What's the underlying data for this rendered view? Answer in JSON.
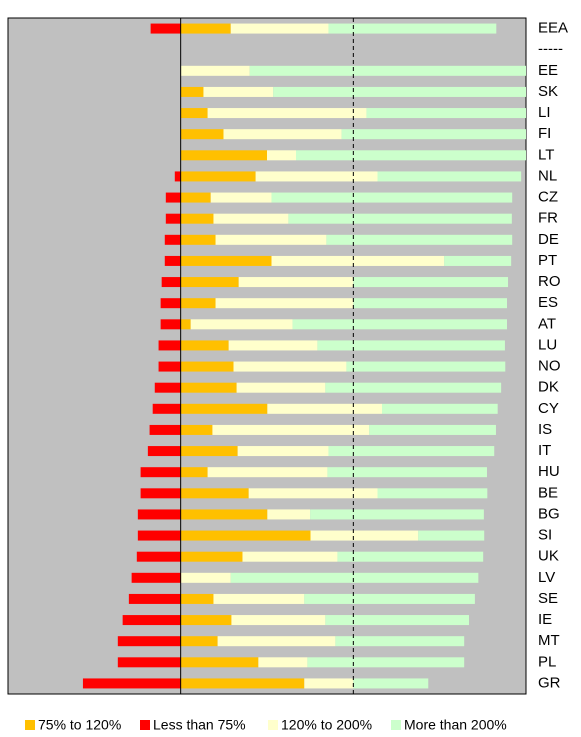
{
  "chart_data": {
    "type": "stacked-bar-horizontal",
    "categories": [
      "EEA",
      "-----",
      "EE",
      "SK",
      "LI",
      "FI",
      "LT",
      "NL",
      "CZ",
      "FR",
      "DE",
      "PT",
      "RO",
      "ES",
      "AT",
      "LU",
      "NO",
      "DK",
      "CY",
      "IS",
      "IT",
      "HU",
      "BE",
      "BG",
      "SI",
      "UK",
      "LV",
      "SE",
      "IE",
      "MT",
      "PL",
      "GR"
    ],
    "series": [
      {
        "name": "75% to 120%",
        "color": "#FFC000",
        "values": [
          14.5,
          null,
          0,
          6.6,
          7.8,
          12.4,
          25,
          21.7,
          8.7,
          9.5,
          10.1,
          26.3,
          16.8,
          10.1,
          2.9,
          13.9,
          15.3,
          16.2,
          25.1,
          9.2,
          16.5,
          7.8,
          19.7,
          25.1,
          37.6,
          17.9,
          0,
          9.5,
          14.7,
          10.7,
          22.5,
          35.8
        ]
      },
      {
        "name": "Less than 75%",
        "color": "#FF0000",
        "values": [
          -8.7,
          null,
          0,
          0,
          0,
          0,
          0,
          -1.7,
          -4.3,
          -4.3,
          -4.6,
          -4.6,
          -5.5,
          -5.8,
          -5.8,
          -6.4,
          -6.4,
          -7.5,
          -8.1,
          -9,
          -9.5,
          -11.6,
          -11.6,
          -12.4,
          -12.4,
          -12.7,
          -14.2,
          -15,
          -16.8,
          -18.2,
          -18.2,
          -28.3
        ]
      },
      {
        "name": "120% to 200%",
        "color": "#FFFFCC",
        "values": [
          28.3,
          null,
          20,
          20.2,
          46,
          34.2,
          8.4,
          35.3,
          17.6,
          21.7,
          32.1,
          50,
          33.2,
          39.9,
          29.5,
          25.7,
          32.7,
          25.7,
          33.2,
          45.4,
          26.3,
          34.7,
          37.3,
          12.4,
          31.2,
          27.5,
          14.5,
          26.3,
          27.2,
          34.1,
          14.2,
          14.2
        ]
      },
      {
        "name": "More than 200%",
        "color": "#CCFFCC",
        "values": [
          48.6,
          null,
          80,
          73.2,
          46.2,
          53.4,
          66.6,
          41.6,
          69.7,
          64.7,
          53.8,
          19.4,
          44.8,
          44.5,
          62.1,
          54.3,
          46,
          50.9,
          33.5,
          36.7,
          48,
          46.2,
          31.8,
          50.3,
          19.1,
          42.2,
          71.7,
          49.4,
          41.6,
          37.3,
          45.4,
          21.7
        ]
      }
    ],
    "xlim": [
      -50,
      100
    ],
    "reference_lines": [
      {
        "value": 0,
        "style": "solid"
      },
      {
        "value": 50,
        "style": "dashed"
      }
    ],
    "plot_background": "#C0C0C0",
    "legend": "bottom"
  }
}
